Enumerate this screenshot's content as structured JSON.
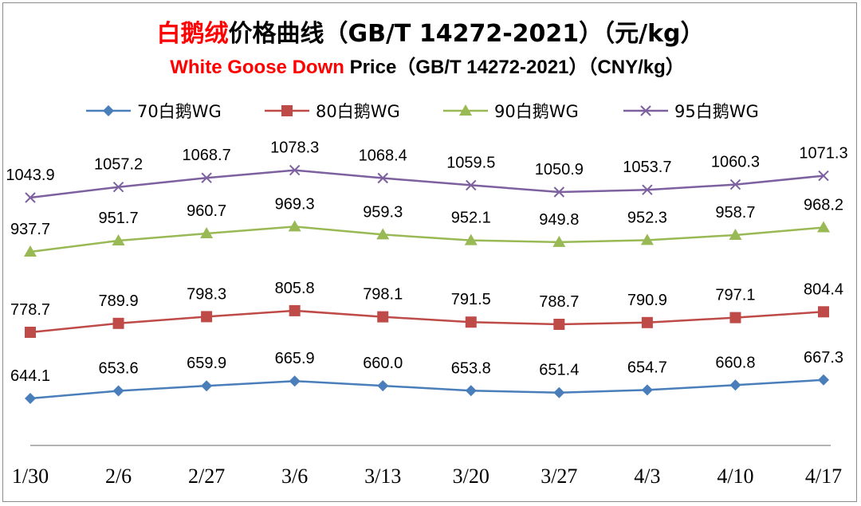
{
  "chart_data": {
    "type": "line",
    "title_highlight": "白鹅绒",
    "title_rest": "价格曲线（GB/T 14272-2021）（元/kg）",
    "subtitle_highlight": "White Goose Down",
    "subtitle_rest": " Price（GB/T 14272-2021）（CNY/kg）",
    "categories": [
      "1/30",
      "2/6",
      "2/27",
      "3/6",
      "3/13",
      "3/20",
      "3/27",
      "4/3",
      "4/10",
      "4/17"
    ],
    "series": [
      {
        "name": "70白鹅WG",
        "color": "#4a7ebb",
        "marker": "diamond",
        "values": [
          644.1,
          653.6,
          659.9,
          665.9,
          660.0,
          653.8,
          651.4,
          654.7,
          660.8,
          667.3
        ],
        "labels": [
          "644.1",
          "653.6",
          "659.9",
          "665.9",
          "660.0",
          "653.8",
          "651.4",
          "654.7",
          "660.8",
          "667.3"
        ]
      },
      {
        "name": "80白鹅WG",
        "color": "#be4b48",
        "marker": "square",
        "values": [
          778.7,
          789.9,
          798.3,
          805.8,
          798.1,
          791.5,
          788.7,
          790.9,
          797.1,
          804.4
        ],
        "labels": [
          "778.7",
          "789.9",
          "798.3",
          "805.8",
          "798.1",
          "791.5",
          "788.7",
          "790.9",
          "797.1",
          "804.4"
        ]
      },
      {
        "name": "90白鹅WG",
        "color": "#98b954",
        "marker": "triangle",
        "values": [
          937.7,
          951.7,
          960.7,
          969.3,
          959.3,
          952.1,
          949.8,
          952.3,
          958.7,
          968.2
        ],
        "labels": [
          "937.7",
          "951.7",
          "960.7",
          "969.3",
          "959.3",
          "952.1",
          "949.8",
          "952.3",
          "958.7",
          "968.2"
        ]
      },
      {
        "name": "95白鹅WG",
        "color": "#7d60a0",
        "marker": "x",
        "values": [
          1043.9,
          1057.2,
          1068.7,
          1078.3,
          1068.4,
          1059.5,
          1050.9,
          1053.7,
          1060.3,
          1071.3
        ],
        "labels": [
          "1043.9",
          "1057.2",
          "1068.7",
          "1078.3",
          "1068.4",
          "1059.5",
          "1050.9",
          "1053.7",
          "1060.3",
          "1071.3"
        ]
      }
    ],
    "title_color": "#ff0000",
    "grid": false,
    "legend_position": "top"
  }
}
